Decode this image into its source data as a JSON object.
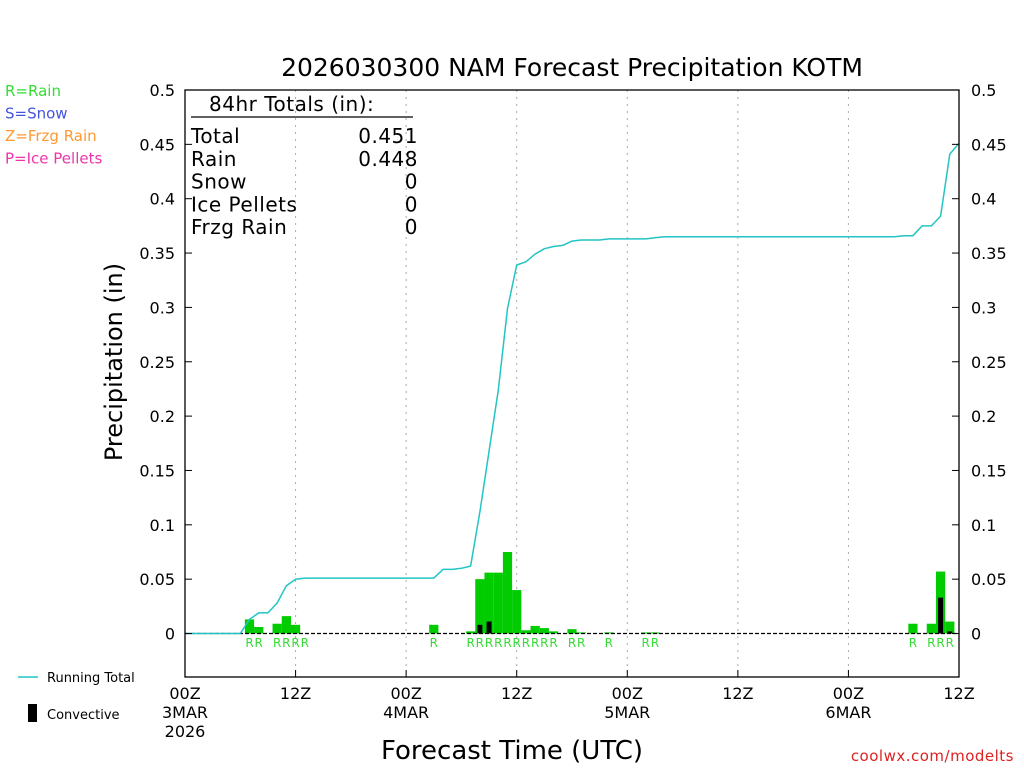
{
  "chart_data": {
    "type": "bar",
    "title": "2026030300 NAM Forecast Precipitation KOTM",
    "xlabel": "Forecast Time (UTC)",
    "ylabel": "Precipitation (in)",
    "units": "in",
    "forecast_hours": 84,
    "ylim": [
      -0.04,
      0.5
    ],
    "yticks": [
      0,
      0.05,
      0.1,
      0.15,
      0.2,
      0.25,
      0.3,
      0.35,
      0.4,
      0.45,
      0.5
    ],
    "ytick_labels": [
      "0",
      "0.05",
      "0.1",
      "0.15",
      "0.2",
      "0.25",
      "0.3",
      "0.35",
      "0.4",
      "0.45",
      "0.5"
    ],
    "xlim": [
      0,
      84
    ],
    "xticks": [
      {
        "hour": 0,
        "lines": [
          "00Z",
          "3MAR",
          "2026"
        ]
      },
      {
        "hour": 12,
        "lines": [
          "12Z"
        ]
      },
      {
        "hour": 24,
        "lines": [
          "00Z",
          "4MAR"
        ]
      },
      {
        "hour": 36,
        "lines": [
          "12Z"
        ]
      },
      {
        "hour": 48,
        "lines": [
          "00Z",
          "5MAR"
        ]
      },
      {
        "hour": 60,
        "lines": [
          "12Z"
        ]
      },
      {
        "hour": 72,
        "lines": [
          "00Z",
          "6MAR"
        ]
      },
      {
        "hour": 84,
        "lines": [
          "12Z"
        ]
      }
    ],
    "gridlines_hours": [
      12,
      24,
      36,
      48,
      60,
      72
    ],
    "totals_box": {
      "header": "84hr Totals (in):",
      "rows": [
        {
          "label": "Total",
          "value": "0.451"
        },
        {
          "label": "Rain",
          "value": "0.448"
        },
        {
          "label": "Snow",
          "value": "0"
        },
        {
          "label": "Ice Pellets",
          "value": "0"
        },
        {
          "label": "Frzg Rain",
          "value": "0"
        }
      ]
    },
    "type_legend": [
      {
        "text": "R=Rain",
        "color": "#33dd33"
      },
      {
        "text": "S=Snow",
        "color": "#4455dd"
      },
      {
        "text": "Z=Frzg Rain",
        "color": "#ff9933"
      },
      {
        "text": "P=Ice Pellets",
        "color": "#ee33aa"
      }
    ],
    "series_legend": {
      "running_total": "Running Total",
      "convective": "Convective"
    },
    "colors": {
      "rain_bar": "#00cc00",
      "convective_bar": "#000000",
      "running_total": "#22c4c4",
      "rain_label": "#33dd33",
      "grid": "#aaaaaa",
      "zero_line": "#000000",
      "credit": "#dd2222"
    },
    "bar_width_hours": 1,
    "series": [
      {
        "name": "Rain",
        "bars": [
          {
            "hour": 7,
            "value": 0.013
          },
          {
            "hour": 8,
            "value": 0.006
          },
          {
            "hour": 10,
            "value": 0.009
          },
          {
            "hour": 11,
            "value": 0.016
          },
          {
            "hour": 12,
            "value": 0.008
          },
          {
            "hour": 27,
            "value": 0.008
          },
          {
            "hour": 31,
            "value": 0.002
          },
          {
            "hour": 32,
            "value": 0.05
          },
          {
            "hour": 33,
            "value": 0.056
          },
          {
            "hour": 34,
            "value": 0.056
          },
          {
            "hour": 35,
            "value": 0.075
          },
          {
            "hour": 36,
            "value": 0.04
          },
          {
            "hour": 37,
            "value": 0.003
          },
          {
            "hour": 38,
            "value": 0.007
          },
          {
            "hour": 39,
            "value": 0.005
          },
          {
            "hour": 40,
            "value": 0.002
          },
          {
            "hour": 42,
            "value": 0.004
          },
          {
            "hour": 43,
            "value": 0.001
          },
          {
            "hour": 46,
            "value": 0.001
          },
          {
            "hour": 50,
            "value": 0.001
          },
          {
            "hour": 51,
            "value": 0.001
          },
          {
            "hour": 79,
            "value": 0.009
          },
          {
            "hour": 81,
            "value": 0.009
          },
          {
            "hour": 82,
            "value": 0.057
          },
          {
            "hour": 83,
            "value": 0.011
          }
        ]
      },
      {
        "name": "Convective",
        "bars": [
          {
            "hour": 32,
            "value": 0.008
          },
          {
            "hour": 33,
            "value": 0.011
          },
          {
            "hour": 82,
            "value": 0.033
          },
          {
            "hour": 83,
            "value": 0.002
          }
        ]
      },
      {
        "name": "Running Total",
        "points": [
          [
            0,
            0
          ],
          [
            6,
            0
          ],
          [
            7,
            0.013
          ],
          [
            8,
            0.019
          ],
          [
            9,
            0.019
          ],
          [
            10,
            0.028
          ],
          [
            11,
            0.044
          ],
          [
            12,
            0.05
          ],
          [
            13,
            0.051
          ],
          [
            24,
            0.051
          ],
          [
            27,
            0.051
          ],
          [
            28,
            0.059
          ],
          [
            29,
            0.059
          ],
          [
            30,
            0.06
          ],
          [
            31,
            0.062
          ],
          [
            32,
            0.112
          ],
          [
            33,
            0.168
          ],
          [
            34,
            0.224
          ],
          [
            35,
            0.299
          ],
          [
            36,
            0.339
          ],
          [
            37,
            0.342
          ],
          [
            38,
            0.349
          ],
          [
            39,
            0.354
          ],
          [
            40,
            0.356
          ],
          [
            41,
            0.357
          ],
          [
            42,
            0.361
          ],
          [
            43,
            0.362
          ],
          [
            45,
            0.362
          ],
          [
            46,
            0.363
          ],
          [
            50,
            0.363
          ],
          [
            51,
            0.364
          ],
          [
            52,
            0.365
          ],
          [
            77,
            0.365
          ],
          [
            78,
            0.366
          ],
          [
            79,
            0.366
          ],
          [
            80,
            0.375
          ],
          [
            81,
            0.375
          ],
          [
            82,
            0.384
          ],
          [
            83,
            0.441
          ],
          [
            84,
            0.451
          ]
        ]
      }
    ],
    "precip_type_labels": [
      {
        "hour": 7,
        "text": "R"
      },
      {
        "hour": 8,
        "text": "R"
      },
      {
        "hour": 10,
        "text": "R"
      },
      {
        "hour": 11,
        "text": "R"
      },
      {
        "hour": 12,
        "text": "R"
      },
      {
        "hour": 13,
        "text": "R"
      },
      {
        "hour": 27,
        "text": "R"
      },
      {
        "hour": 31,
        "text": "R"
      },
      {
        "hour": 32,
        "text": "R"
      },
      {
        "hour": 33,
        "text": "R"
      },
      {
        "hour": 34,
        "text": "R"
      },
      {
        "hour": 35,
        "text": "R"
      },
      {
        "hour": 36,
        "text": "R"
      },
      {
        "hour": 37,
        "text": "R"
      },
      {
        "hour": 38,
        "text": "R"
      },
      {
        "hour": 39,
        "text": "R"
      },
      {
        "hour": 40,
        "text": "R"
      },
      {
        "hour": 42,
        "text": "R"
      },
      {
        "hour": 43,
        "text": "R"
      },
      {
        "hour": 46,
        "text": "R"
      },
      {
        "hour": 50,
        "text": "R"
      },
      {
        "hour": 51,
        "text": "R"
      },
      {
        "hour": 79,
        "text": "R"
      },
      {
        "hour": 81,
        "text": "R"
      },
      {
        "hour": 82,
        "text": "R"
      },
      {
        "hour": 83,
        "text": "R"
      }
    ]
  },
  "credit": "coolwx.com/modelts"
}
